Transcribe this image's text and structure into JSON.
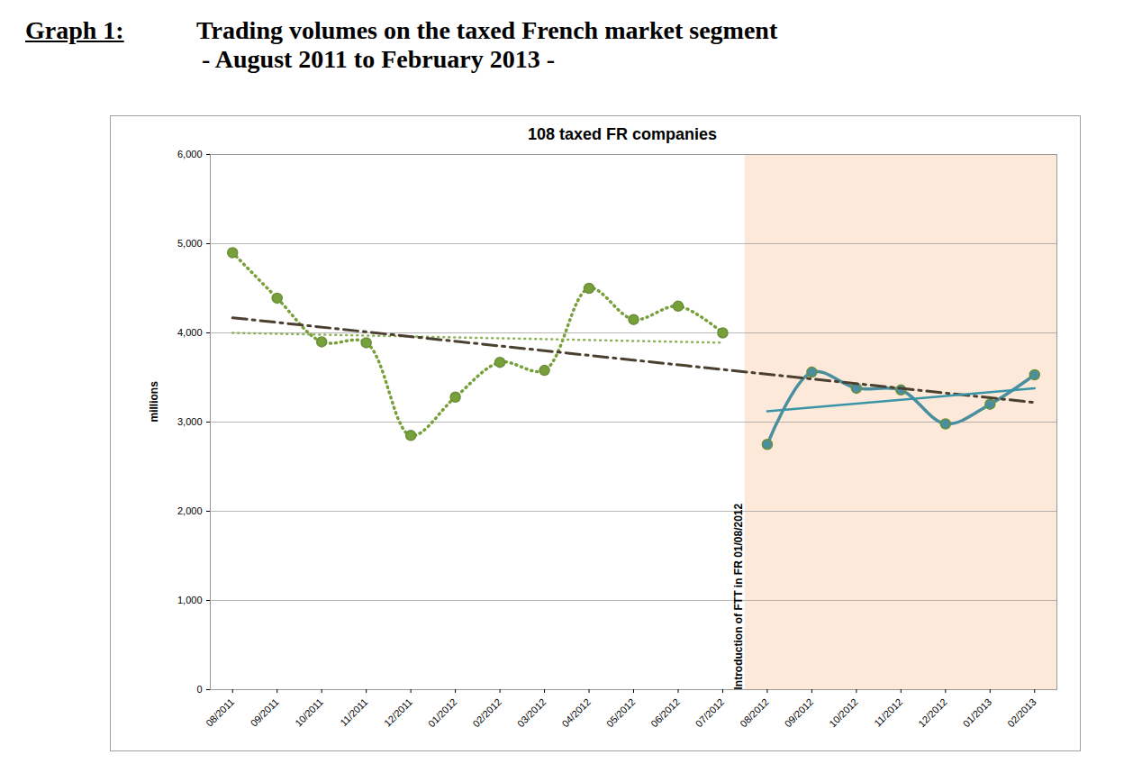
{
  "chart_data": {
    "type": "line",
    "figure_label": "Graph 1:",
    "title": "Trading volumes on the taxed French market segment",
    "subtitle": "- August 2011 to February 2013 -",
    "chart_title": "108 taxed FR companies",
    "ylabel": "millions",
    "categories": [
      "08/2011",
      "09/2011",
      "10/2011",
      "11/2011",
      "12/2011",
      "01/2012",
      "02/2012",
      "03/2012",
      "04/2012",
      "05/2012",
      "06/2012",
      "07/2012",
      "08/2012",
      "09/2012",
      "10/2012",
      "11/2012",
      "12/2012",
      "01/2013",
      "02/2013"
    ],
    "series": [
      {
        "color": "#77a03a",
        "line_style": "dotted",
        "marker": "circle",
        "values": [
          4900,
          4390,
          3900,
          3890,
          2850,
          3280,
          3670,
          3580,
          4500,
          4150,
          4300,
          4000,
          null,
          null,
          null,
          null,
          null,
          null,
          null
        ]
      },
      {
        "color": "#4a8fa0",
        "line_style": "solid",
        "marker": "circle",
        "values": [
          null,
          null,
          null,
          null,
          null,
          null,
          null,
          null,
          null,
          null,
          null,
          null,
          2750,
          3560,
          3380,
          3360,
          2980,
          3200,
          3530
        ]
      },
      {
        "color": "#8fb35a",
        "line_style": "dotted",
        "marker": "none",
        "values": [
          4000,
          null,
          null,
          null,
          null,
          null,
          null,
          null,
          null,
          null,
          null,
          3890,
          null,
          null,
          null,
          null,
          null,
          null,
          null
        ]
      },
      {
        "color": "#4b3f2f",
        "line_style": "dashdot",
        "marker": "none",
        "values": [
          4170,
          null,
          null,
          null,
          null,
          null,
          null,
          null,
          null,
          null,
          null,
          null,
          null,
          null,
          null,
          null,
          null,
          null,
          3220
        ]
      },
      {
        "color": "#3a94a8",
        "line_style": "solid",
        "marker": "none",
        "values": [
          null,
          null,
          null,
          null,
          null,
          null,
          null,
          null,
          null,
          null,
          null,
          null,
          3120,
          null,
          null,
          null,
          null,
          null,
          3380
        ]
      }
    ],
    "annotations": [
      {
        "text": "Introduction of FTT in FR 01/08/2012",
        "x": "08/2012"
      }
    ],
    "ylim": [
      0,
      6000
    ],
    "yticks": [
      0,
      1000,
      2000,
      3000,
      4000,
      5000,
      6000
    ],
    "grid": true
  }
}
